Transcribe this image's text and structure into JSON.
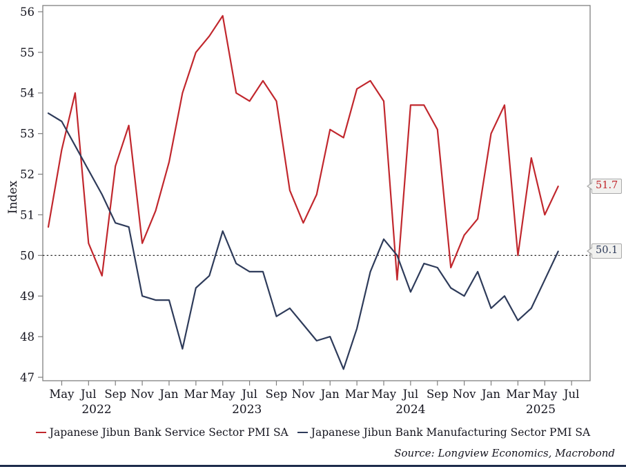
{
  "source": "Source: Longview Economics, Macrobond",
  "footer_bar_color": "#1b2a4a",
  "frame_color": "#7f7f7f",
  "callouts": [
    {
      "value": "51.7",
      "color": "#c1272d",
      "series": "Japanese Jibun Bank Service Sector PMI SA"
    },
    {
      "value": "50.1",
      "color": "#2e3b5a",
      "series": "Japanese Jibun Bank Manufacturing Sector PMI SA"
    }
  ],
  "chart_data": {
    "type": "line",
    "title": "",
    "ylabel": "Index",
    "xlabel": "",
    "ylim": [
      47,
      56
    ],
    "yticks": [
      47,
      48,
      49,
      50,
      51,
      52,
      53,
      54,
      55,
      56
    ],
    "grid": false,
    "legend_position": "bottom",
    "reference_line": 50,
    "x": [
      "Apr 2022",
      "May 2022",
      "Jun 2022",
      "Jul 2022",
      "Aug 2022",
      "Sep 2022",
      "Oct 2022",
      "Nov 2022",
      "Dec 2022",
      "Jan 2023",
      "Feb 2023",
      "Mar 2023",
      "Apr 2023",
      "May 2023",
      "Jun 2023",
      "Jul 2023",
      "Aug 2023",
      "Sep 2023",
      "Oct 2023",
      "Nov 2023",
      "Dec 2023",
      "Jan 2024",
      "Feb 2024",
      "Mar 2024",
      "Apr 2024",
      "May 2024",
      "Jun 2024",
      "Jul 2024",
      "Aug 2024",
      "Sep 2024",
      "Oct 2024",
      "Nov 2024",
      "Dec 2024",
      "Jan 2025",
      "Feb 2025",
      "Mar 2025",
      "Apr 2025",
      "May 2025",
      "Jun 2025"
    ],
    "series": [
      {
        "name": "Japanese Jibun Bank Service Sector PMI SA",
        "color": "#c1272d",
        "values": [
          50.7,
          52.6,
          54.0,
          50.3,
          49.5,
          52.2,
          53.2,
          50.3,
          51.1,
          52.3,
          54.0,
          55.0,
          55.4,
          55.9,
          54.0,
          53.8,
          54.3,
          53.8,
          51.6,
          50.8,
          51.5,
          53.1,
          52.9,
          54.1,
          54.3,
          53.8,
          49.4,
          53.7,
          53.7,
          53.1,
          49.7,
          50.5,
          50.9,
          53.0,
          53.7,
          50.0,
          52.4,
          51.0,
          51.7
        ]
      },
      {
        "name": "Japanese Jibun Bank Manufacturing Sector PMI SA",
        "color": "#2e3b5a",
        "values": [
          53.5,
          53.3,
          52.7,
          52.1,
          51.5,
          50.8,
          50.7,
          49.0,
          48.9,
          48.9,
          47.7,
          49.2,
          49.5,
          50.6,
          49.8,
          49.6,
          49.6,
          48.5,
          48.7,
          48.3,
          47.9,
          48.0,
          47.2,
          48.2,
          49.6,
          50.4,
          50.0,
          49.1,
          49.8,
          49.7,
          49.2,
          49.0,
          49.6,
          48.7,
          49.0,
          48.4,
          48.7,
          49.4,
          50.1
        ]
      }
    ],
    "xticks": [
      {
        "label": "May",
        "month_index": 1
      },
      {
        "label": "Jul",
        "month_index": 3
      },
      {
        "label": "Sep",
        "month_index": 5
      },
      {
        "label": "Nov",
        "month_index": 7
      },
      {
        "label": "Jan",
        "month_index": 9
      },
      {
        "label": "Mar",
        "month_index": 11
      },
      {
        "label": "May",
        "month_index": 13
      },
      {
        "label": "Jul",
        "month_index": 15
      },
      {
        "label": "Sep",
        "month_index": 17
      },
      {
        "label": "Nov",
        "month_index": 19
      },
      {
        "label": "Jan",
        "month_index": 21
      },
      {
        "label": "Mar",
        "month_index": 23
      },
      {
        "label": "May",
        "month_index": 25
      },
      {
        "label": "Jul",
        "month_index": 27
      },
      {
        "label": "Sep",
        "month_index": 29
      },
      {
        "label": "Nov",
        "month_index": 31
      },
      {
        "label": "Jan",
        "month_index": 33
      },
      {
        "label": "Mar",
        "month_index": 35
      },
      {
        "label": "May",
        "month_index": 37
      },
      {
        "label": "Jul",
        "month_index": 39
      }
    ],
    "year_labels": [
      {
        "label": "2022",
        "month_index": 3.6
      },
      {
        "label": "2023",
        "month_index": 14.8
      },
      {
        "label": "2024",
        "month_index": 27.0
      },
      {
        "label": "2025",
        "month_index": 36.7
      }
    ]
  }
}
